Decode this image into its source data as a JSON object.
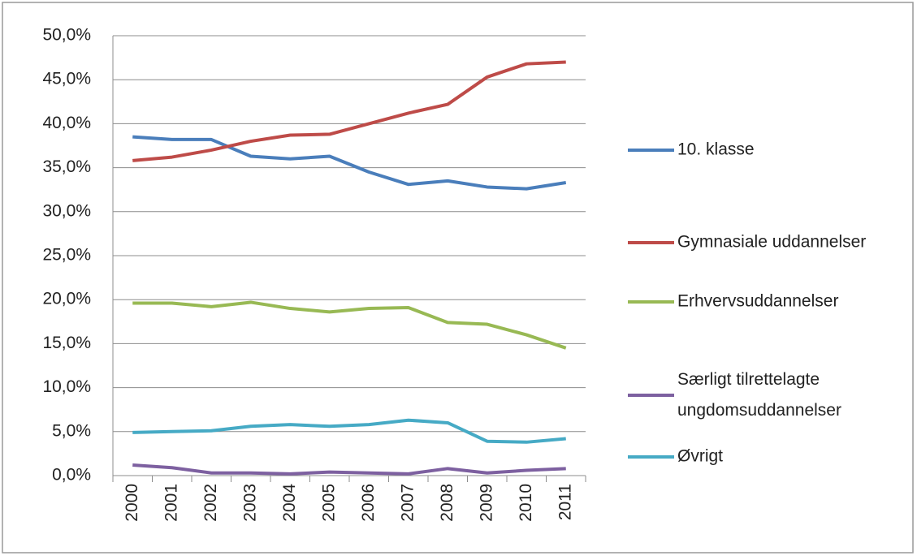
{
  "chart_data": {
    "type": "line",
    "categories": [
      "2000",
      "2001",
      "2002",
      "2003",
      "2004",
      "2005",
      "2006",
      "2007",
      "2008",
      "2009",
      "2010",
      "2011"
    ],
    "series": [
      {
        "name": "10. klasse",
        "color": "#4a7ebb",
        "values": [
          38.5,
          38.2,
          38.2,
          36.3,
          36.0,
          36.3,
          34.5,
          33.1,
          33.5,
          32.8,
          32.6,
          33.3
        ]
      },
      {
        "name": "Gymnasiale uddannelser",
        "color": "#be4b48",
        "values": [
          35.8,
          36.2,
          37.0,
          38.0,
          38.7,
          38.8,
          40.0,
          41.2,
          42.2,
          45.3,
          46.8,
          47.0
        ]
      },
      {
        "name": "Erhvervsuddannelser",
        "color": "#98b954",
        "values": [
          19.6,
          19.6,
          19.2,
          19.7,
          19.0,
          18.6,
          19.0,
          19.1,
          17.4,
          17.2,
          16.0,
          14.5
        ]
      },
      {
        "name": "Særligt tilrettelagte ungdomsuddannelser",
        "color": "#7d60a0",
        "values": [
          1.2,
          0.9,
          0.3,
          0.3,
          0.2,
          0.4,
          0.3,
          0.2,
          0.8,
          0.3,
          0.6,
          0.8
        ]
      },
      {
        "name": "Øvrigt",
        "color": "#46aac5",
        "values": [
          4.9,
          5.0,
          5.1,
          5.6,
          5.8,
          5.6,
          5.8,
          6.3,
          6.0,
          3.9,
          3.8,
          4.2
        ]
      }
    ],
    "ylim": [
      0,
      50
    ],
    "yticks": [
      {
        "value": 0,
        "label": "0,0%"
      },
      {
        "value": 5,
        "label": "5,0%"
      },
      {
        "value": 10,
        "label": "10,0%"
      },
      {
        "value": 15,
        "label": "15,0%"
      },
      {
        "value": 20,
        "label": "20,0%"
      },
      {
        "value": 25,
        "label": "25,0%"
      },
      {
        "value": 30,
        "label": "30,0%"
      },
      {
        "value": 35,
        "label": "35,0%"
      },
      {
        "value": 40,
        "label": "40,0%"
      },
      {
        "value": 45,
        "label": "45,0%"
      },
      {
        "value": 50,
        "label": "50,0%"
      }
    ],
    "grid": true,
    "legend": "right"
  }
}
